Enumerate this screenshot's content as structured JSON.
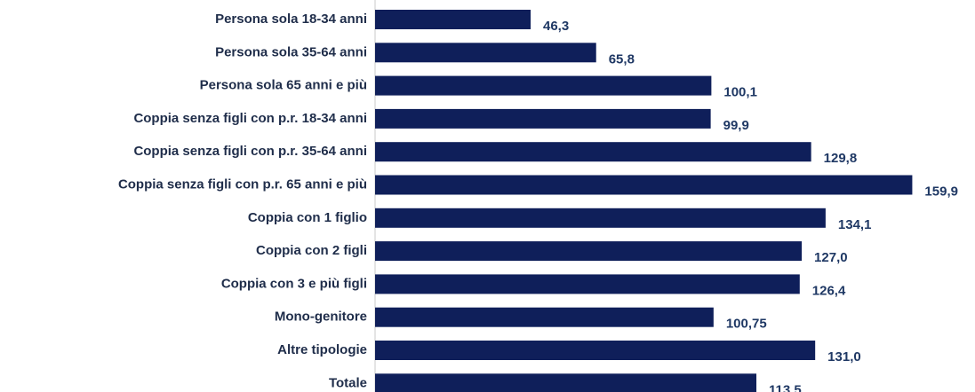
{
  "chart_data": {
    "type": "barh",
    "categories": [
      "Persona sola 18-34 anni",
      "Persona sola 35-64 anni",
      "Persona sola 65 anni e più",
      "Coppia senza figli con p.r. 18-34 anni",
      "Coppia senza figli con p.r. 35-64 anni",
      "Coppia senza figli con p.r. 65 anni e più",
      "Coppia con 1 figlio",
      "Coppia con 2 figli",
      "Coppia con 3 e più figli",
      "Mono-genitore",
      "Altre tipologie",
      "Totale"
    ],
    "values": [
      46.3,
      65.8,
      100.1,
      99.9,
      129.8,
      159.9,
      134.1,
      127.0,
      126.4,
      100.75,
      131.0,
      113.5
    ],
    "value_labels": [
      "46,3",
      "65,8",
      "100,1",
      "99,9",
      "129,8",
      "159,9",
      "134,1",
      "127,0",
      "126,4",
      "100,75",
      "131,0",
      "113,5"
    ],
    "color": "#0f1f5a",
    "xlim": [
      0,
      170
    ]
  }
}
